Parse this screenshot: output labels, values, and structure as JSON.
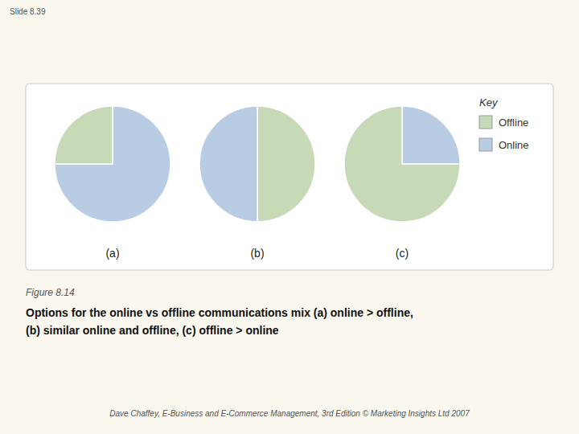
{
  "title": "Options for the online vs offline communications mix (a) online > offline,",
  "subtitle": "(b) similar online and offline, (c) offline > online",
  "annotations": [
    "Slide 8.39",
    "Figure 8.14",
    "Dave Chaffey, E-Business and E-Commerce Management, 3rd Edition © Marketing Insights Ltd 2007",
    "Key"
  ],
  "chart_data": [
    {
      "type": "pie",
      "title": "(a)",
      "categories": [
        "Online",
        "Offline"
      ],
      "values": [
        75,
        25
      ],
      "colors": [
        "#b8cce4",
        "#c8d9b8"
      ]
    },
    {
      "type": "pie",
      "title": "(b)",
      "categories": [
        "Offline",
        "Online"
      ],
      "values": [
        50,
        50
      ],
      "colors": [
        "#c8d9b8",
        "#b8cce4"
      ],
      "legend": "upper right"
    },
    {
      "type": "pie",
      "title": "(c)",
      "categories": [
        "Online",
        "Offline"
      ],
      "values": [
        25,
        75
      ],
      "colors": [
        "#b8cce4",
        "#c8d9b8"
      ]
    }
  ]
}
